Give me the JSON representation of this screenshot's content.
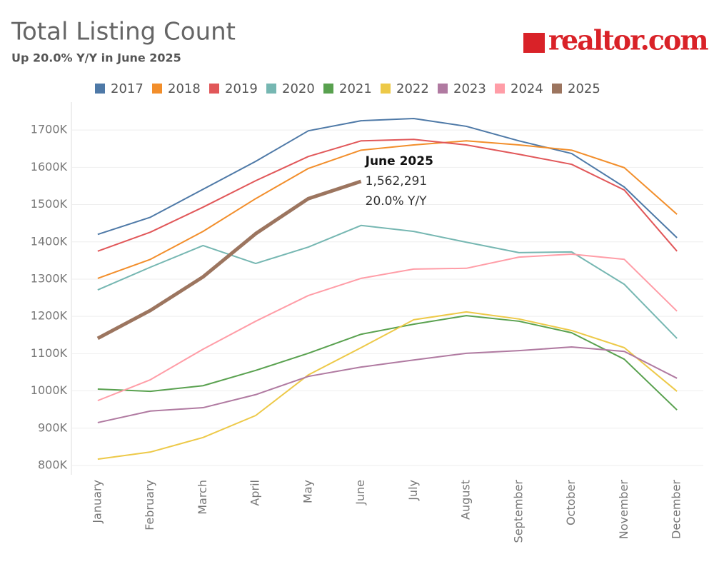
{
  "chart_data": {
    "type": "line",
    "title": "Total Listing Count",
    "subtitle": "Up 20.0% Y/Y in June 2025",
    "logo": "realtor.com",
    "categories": [
      "January",
      "February",
      "March",
      "April",
      "May",
      "June",
      "July",
      "August",
      "September",
      "October",
      "November",
      "December"
    ],
    "series": [
      {
        "name": "2017",
        "color": "#4e79a7",
        "values": [
          1420000,
          1466000,
          1541000,
          1616000,
          1698000,
          1725000,
          1731000,
          1710000,
          1671000,
          1637000,
          1547000,
          1411000
        ]
      },
      {
        "name": "2018",
        "color": "#f28e2b",
        "values": [
          1302000,
          1353000,
          1428000,
          1516000,
          1597000,
          1646000,
          1660000,
          1671000,
          1660000,
          1646000,
          1599000,
          1474000
        ]
      },
      {
        "name": "2019",
        "color": "#e15759",
        "values": [
          1375000,
          1426000,
          1493000,
          1564000,
          1629000,
          1671000,
          1675000,
          1660000,
          1635000,
          1608000,
          1539000,
          1375000
        ]
      },
      {
        "name": "2020",
        "color": "#76b7b2",
        "values": [
          1271000,
          1332000,
          1390000,
          1342000,
          1386000,
          1444000,
          1428000,
          1399000,
          1371000,
          1373000,
          1286000,
          1141000
        ]
      },
      {
        "name": "2021",
        "color": "#59a14f",
        "values": [
          1005000,
          999000,
          1014000,
          1055000,
          1101000,
          1152000,
          1179000,
          1202000,
          1187000,
          1156000,
          1085000,
          949000
        ]
      },
      {
        "name": "2022",
        "color": "#edc948",
        "values": [
          817000,
          836000,
          875000,
          934000,
          1043000,
          1116000,
          1191000,
          1212000,
          1193000,
          1162000,
          1116000,
          999000
        ]
      },
      {
        "name": "2023",
        "color": "#b07aa1",
        "values": [
          915000,
          946000,
          955000,
          990000,
          1039000,
          1064000,
          1083000,
          1101000,
          1108000,
          1118000,
          1106000,
          1034000
        ]
      },
      {
        "name": "2024",
        "color": "#ff9da7",
        "values": [
          974000,
          1030000,
          1112000,
          1187000,
          1256000,
          1302000,
          1327000,
          1329000,
          1359000,
          1367000,
          1353000,
          1214000
        ]
      },
      {
        "name": "2025",
        "color": "#9c755f",
        "values": [
          1141000,
          1216000,
          1306000,
          1422000,
          1516000,
          1562291,
          null,
          null,
          null,
          null,
          null,
          null
        ],
        "value_labels": [
          null,
          null,
          null,
          null,
          null,
          "1,562,291",
          null,
          null,
          null,
          null,
          null,
          null
        ]
      }
    ],
    "annotation": {
      "title": "June 2025",
      "text": "20.0% Y/Y"
    },
    "highlight_series": 8,
    "ylim": [
      775000,
      1775000
    ],
    "yticks": [
      {
        "value": 800000,
        "label": "800K"
      },
      {
        "value": 900000,
        "label": "900K"
      },
      {
        "value": 1000000,
        "label": "1000K"
      },
      {
        "value": 1100000,
        "label": "1100K"
      },
      {
        "value": 1200000,
        "label": "1200K"
      },
      {
        "value": 1300000,
        "label": "1300K"
      },
      {
        "value": 1400000,
        "label": "1400K"
      },
      {
        "value": 1500000,
        "label": "1500K"
      },
      {
        "value": 1600000,
        "label": "1600K"
      },
      {
        "value": 1700000,
        "label": "1700K"
      }
    ],
    "grid": true
  }
}
